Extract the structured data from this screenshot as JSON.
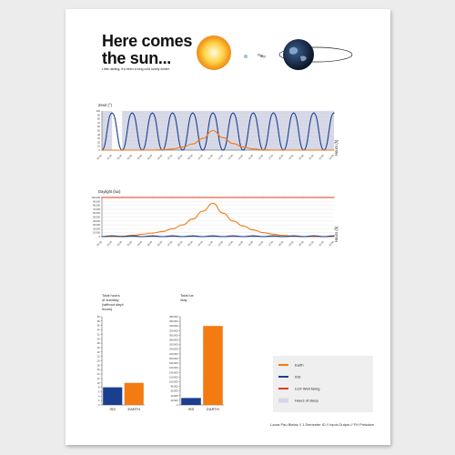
{
  "title_line1": "Here comes",
  "title_line2": "the sun...",
  "subtitle": "Little darling, it's been a long cold lonely winter.",
  "footer": "Laura Pau Bielas // 1.Semester ID // Input-Output // FH Potsdam",
  "colors": {
    "earth": "#f47a12",
    "iss": "#1b3f8f",
    "lux": "#e33b1c",
    "sleep": "#d5d7e7"
  },
  "legend": [
    {
      "label": "Earth",
      "color": "#f47a12",
      "kind": "line"
    },
    {
      "label": "ISS",
      "color": "#1b3f8f",
      "kind": "line"
    },
    {
      "label": "LUX Well being",
      "color": "#e33b1c",
      "kind": "line"
    },
    {
      "label": "Hours of sleep",
      "color": "#d5d7e7",
      "kind": "box"
    }
  ],
  "chart_data": [
    {
      "type": "line",
      "ylabel": "Zenit (°)",
      "xlabel": "Hours (h)",
      "ylim": [
        0,
        100
      ],
      "yticks": [
        0,
        10,
        20,
        30,
        40,
        50,
        60,
        70,
        80,
        90,
        100
      ],
      "x": [
        "00:00",
        "01:00",
        "02:00",
        "03:00",
        "04:00",
        "05:00",
        "06:00",
        "07:00",
        "08:00",
        "09:00",
        "10:00",
        "11:00",
        "12:00",
        "13:00",
        "14:00",
        "15:00",
        "16:00",
        "17:00",
        "18:00",
        "19:00",
        "20:00",
        "21:00",
        "22:00",
        "23:00"
      ],
      "series": [
        {
          "name": "ISS",
          "color": "#1b3f8f",
          "values": [
            0,
            95,
            0,
            95,
            0,
            95,
            0,
            95,
            0,
            95,
            0,
            95,
            0,
            95,
            0,
            95,
            0,
            95,
            0,
            95,
            0,
            95,
            0,
            95
          ]
        },
        {
          "name": "Earth",
          "color": "#f47a12",
          "values": [
            0,
            0,
            0,
            0,
            0,
            0,
            1,
            3,
            8,
            16,
            30,
            50,
            32,
            17,
            8,
            3,
            1,
            0,
            0,
            0,
            0,
            0,
            0,
            0
          ]
        }
      ],
      "sleep_bands": [
        [
          0,
          1
        ],
        [
          2,
          23
        ]
      ]
    },
    {
      "type": "line",
      "ylabel": "Daylight (lux)",
      "xlabel": "Hours (h)",
      "ylim": [
        0,
        100000
      ],
      "yticks": [
        0,
        10000,
        20000,
        30000,
        40000,
        50000,
        60000,
        70000,
        80000,
        90000,
        100000
      ],
      "x": [
        "00:00",
        "01:00",
        "02:00",
        "03:00",
        "04:00",
        "05:00",
        "06:00",
        "07:00",
        "08:00",
        "09:00",
        "10:00",
        "11:00",
        "12:00",
        "13:00",
        "14:00",
        "15:00",
        "16:00",
        "17:00",
        "18:00",
        "19:00",
        "20:00",
        "21:00",
        "22:00",
        "23:00"
      ],
      "series": [
        {
          "name": "LUX Well being",
          "color": "#e33b1c",
          "values": [
            100000,
            100000,
            100000,
            100000,
            100000,
            100000,
            100000,
            100000,
            100000,
            100000,
            100000,
            100000,
            100000,
            100000,
            100000,
            100000,
            100000,
            100000,
            100000,
            100000,
            100000,
            100000,
            100000,
            100000
          ]
        },
        {
          "name": "Earth",
          "color": "#f47a12",
          "values": [
            0,
            0,
            1000,
            3000,
            6000,
            9000,
            13000,
            20000,
            30000,
            45000,
            65000,
            85000,
            60000,
            40000,
            27000,
            17000,
            10000,
            6000,
            3000,
            1000,
            0,
            0,
            0,
            0
          ]
        },
        {
          "name": "ISS",
          "color": "#1b3f8f",
          "values": [
            0,
            2000,
            0,
            2000,
            0,
            2000,
            0,
            2000,
            0,
            2000,
            0,
            2000,
            0,
            2000,
            0,
            2000,
            0,
            2000,
            0,
            2000,
            0,
            2000,
            0,
            2000
          ]
        }
      ]
    },
    {
      "type": "bar",
      "title": "Total hours of sun/day (without slept hours)",
      "categories": [
        "ISS",
        "EARTH"
      ],
      "values": [
        8,
        10
      ],
      "colors": [
        "#1b3f8f",
        "#f47a12"
      ],
      "ylim": [
        0,
        40
      ],
      "yticks": [
        0,
        2,
        4,
        6,
        8,
        10,
        12,
        14,
        16,
        18,
        20,
        22,
        24,
        26,
        28,
        30,
        32,
        34,
        36,
        38,
        40
      ]
    },
    {
      "type": "bar",
      "title": "Total lux /day",
      "categories": [
        "ISS",
        "EARTH"
      ],
      "values": [
        30000,
        340000
      ],
      "colors": [
        "#1b3f8f",
        "#f47a12"
      ],
      "ylim": [
        0,
        380000
      ],
      "yticks": [
        0,
        20000,
        40000,
        60000,
        80000,
        100000,
        120000,
        140000,
        160000,
        180000,
        200000,
        220000,
        240000,
        260000,
        280000,
        300000,
        320000,
        340000,
        360000,
        380000
      ]
    }
  ]
}
